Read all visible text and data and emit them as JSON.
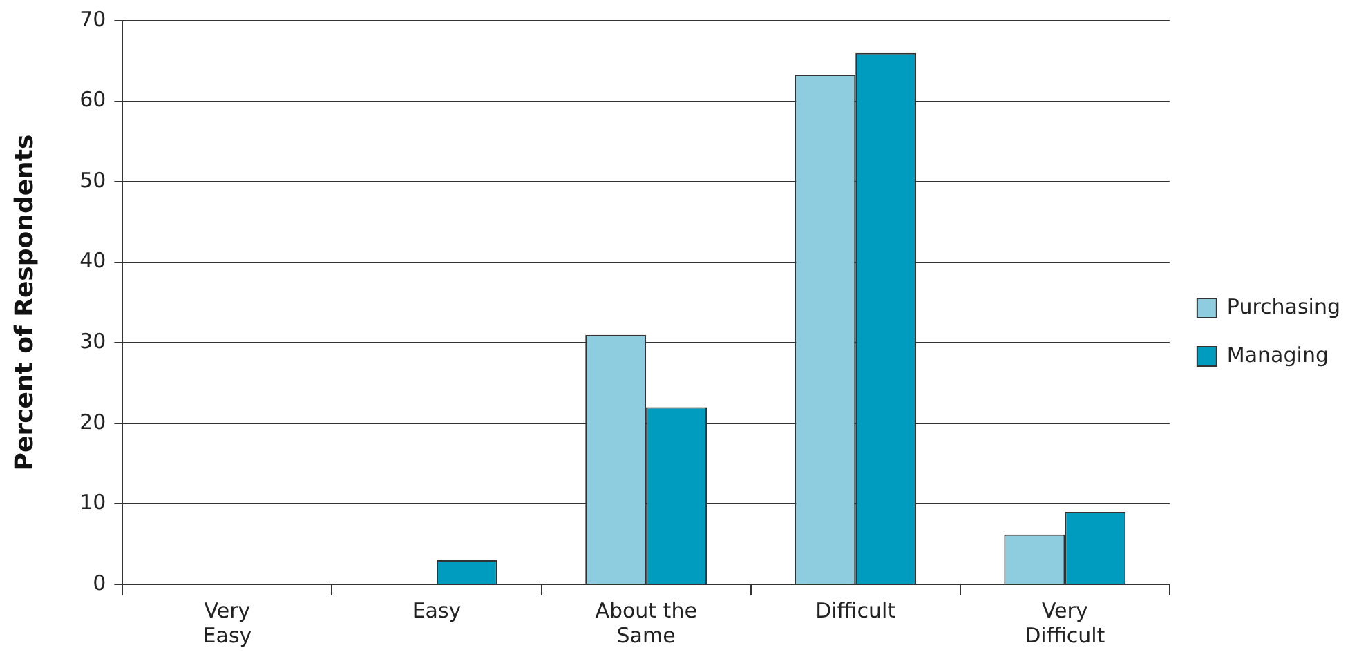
{
  "chart_data": {
    "type": "bar",
    "ylabel": "Percent of Respondents",
    "categories": [
      "Very\nEasy",
      "Easy",
      "About the\nSame",
      "Difficult",
      "Very\nDifficult"
    ],
    "series": [
      {
        "name": "Purchasing",
        "color": "#8ecde0",
        "values": [
          0,
          0,
          31,
          63.3,
          6.2
        ]
      },
      {
        "name": "Managing",
        "color": "#009cc0",
        "values": [
          0,
          3,
          22,
          66,
          9
        ]
      }
    ],
    "ylim": [
      0,
      70
    ],
    "yticks": [
      0,
      10,
      20,
      30,
      40,
      50,
      60,
      70
    ],
    "grid": "y",
    "legend": "right"
  }
}
